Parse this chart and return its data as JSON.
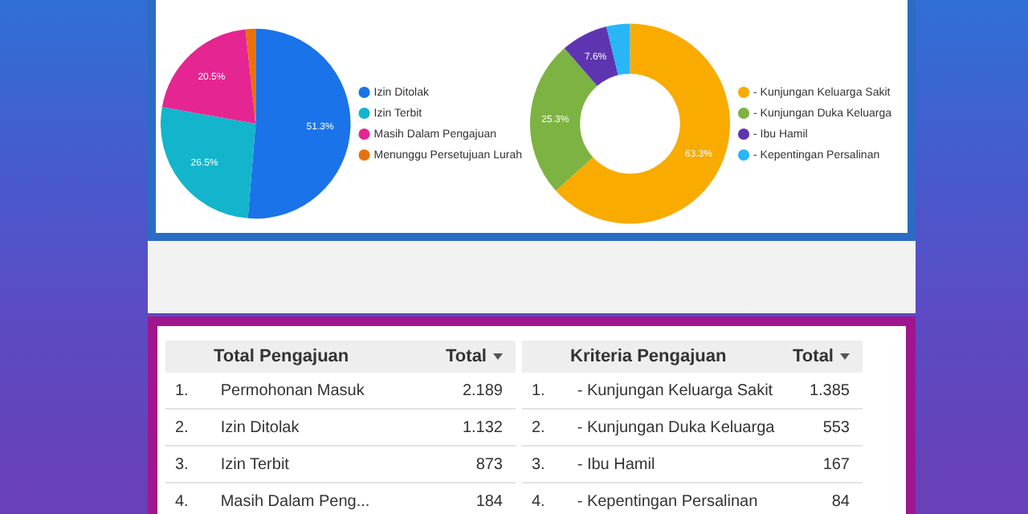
{
  "chart_data": [
    {
      "type": "pie",
      "categories": [
        "Izin Ditolak",
        "Izin Terbit",
        "Masih Dalam Pengajuan",
        "Menunggu Persetujuan Lurah"
      ],
      "values": [
        51.3,
        26.5,
        20.5,
        1.7
      ],
      "colors": [
        "#1a73e8",
        "#12b5cb",
        "#e52592",
        "#e8710a"
      ],
      "value_labels": [
        "51.3%",
        "26.5%",
        "20.5%",
        null
      ],
      "legend": "right"
    },
    {
      "type": "donut",
      "categories": [
        "- Kunjungan Keluarga Sakit",
        "- Kunjungan Duka Keluarga",
        "- Ibu Hamil",
        "- Kepentingan Persalinan"
      ],
      "values": [
        63.3,
        25.3,
        7.6,
        3.8
      ],
      "colors": [
        "#f9ab00",
        "#7cb342",
        "#5e35b1",
        "#29b6f6"
      ],
      "value_labels": [
        "63.3%",
        "25.3%",
        "7.6%",
        null
      ],
      "legend": "right"
    },
    {
      "type": "other",
      "title": "Total Pengajuan",
      "annotations": [
        "Total",
        "1.",
        "Permohonan Masuk",
        "2.189",
        "2.",
        "Izin Ditolak",
        "1.132",
        "3.",
        "Izin Terbit",
        "873",
        "4.",
        "Masih Dalam Peng...",
        "184"
      ]
    },
    {
      "type": "other",
      "title": "Kriteria Pengajuan",
      "annotations": [
        "Total",
        "1.",
        "- Kunjungan Keluarga Sakit",
        "1.385",
        "2.",
        "- Kunjungan Duka Keluarga",
        "553",
        "3.",
        "- Ibu Hamil",
        "167",
        "4.",
        "- Kepentingan Persalinan",
        "84"
      ]
    }
  ]
}
